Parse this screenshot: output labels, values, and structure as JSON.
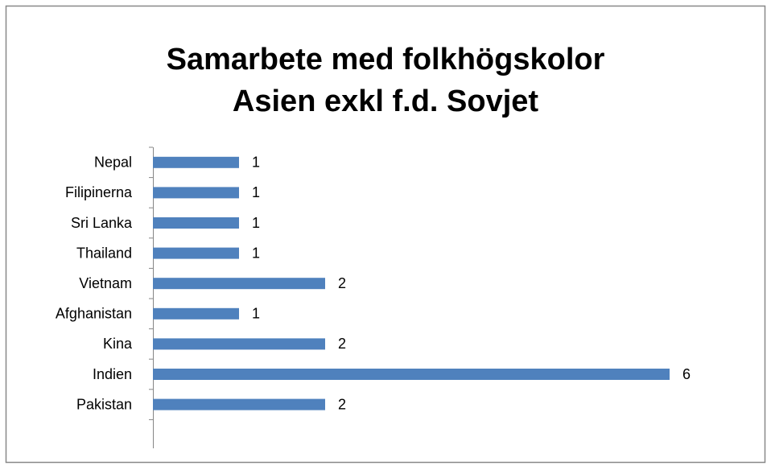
{
  "chart_data": {
    "type": "bar",
    "orientation": "horizontal",
    "title": [
      "Samarbete med folkhögskolor",
      "Asien exkl f.d. Sovjet"
    ],
    "categories": [
      "Nepal",
      "Filipinerna",
      "Sri Lanka",
      "Thailand",
      "Vietnam",
      "Afghanistan",
      "Kina",
      "Indien",
      "Pakistan"
    ],
    "values": [
      1,
      1,
      1,
      1,
      2,
      1,
      2,
      6,
      2
    ],
    "color": "#4f81bd",
    "xlim": [
      0,
      6
    ]
  }
}
